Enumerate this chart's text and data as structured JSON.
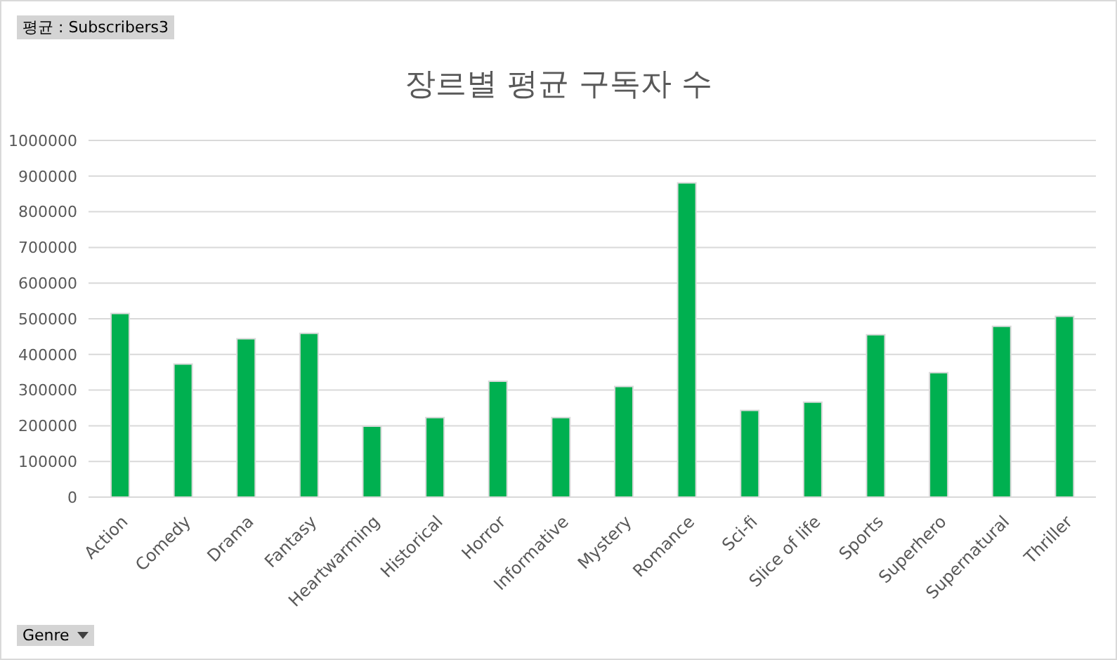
{
  "chart_data": {
    "type": "bar",
    "title": "장르별 평균 구독자 수",
    "categories": [
      "Action",
      "Comedy",
      "Drama",
      "Fantasy",
      "Heartwarming",
      "Historical",
      "Horror",
      "Informative",
      "Mystery",
      "Romance",
      "Sci-fi",
      "Slice of life",
      "Sports",
      "Superhero",
      "Supernatural",
      "Thriller"
    ],
    "values": [
      515000,
      373000,
      444000,
      459000,
      199000,
      223000,
      325000,
      223000,
      310000,
      881000,
      243000,
      266000,
      455000,
      349000,
      479000,
      507000
    ],
    "color": "#00b050",
    "ylim": [
      0,
      1000000
    ],
    "yticks": [
      0,
      100000,
      200000,
      300000,
      400000,
      500000,
      600000,
      700000,
      800000,
      900000,
      1000000
    ],
    "grid": "y",
    "legend": false,
    "annotations": [
      "평균 : Subscribers3",
      "Genre"
    ]
  }
}
